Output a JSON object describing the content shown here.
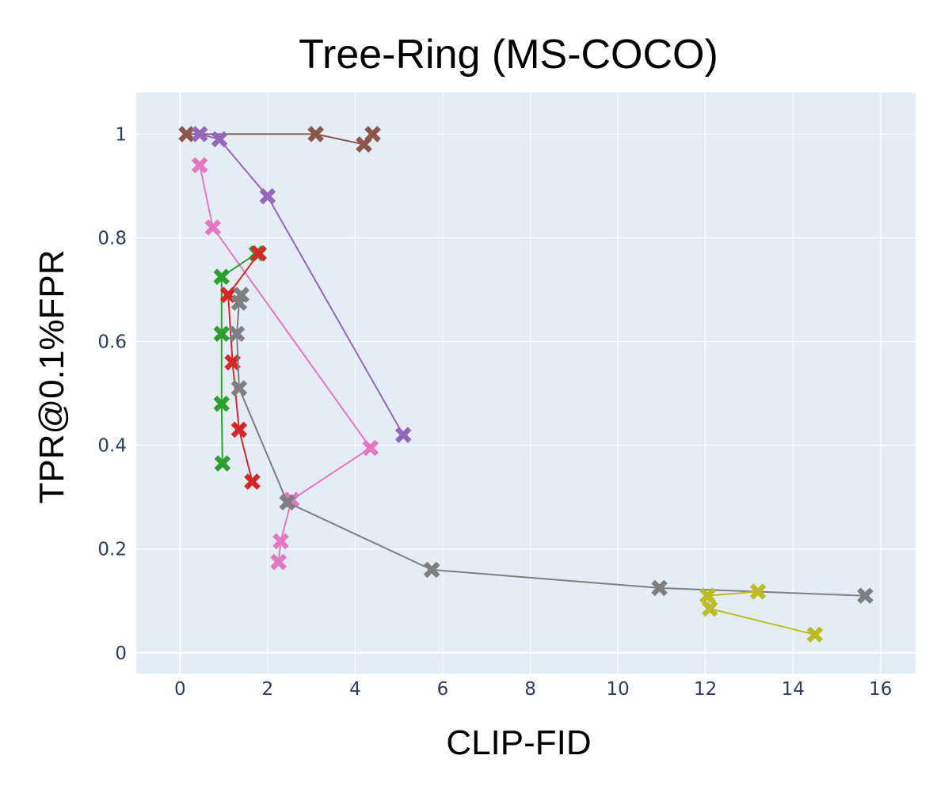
{
  "chart_data": {
    "type": "scatter",
    "title": "Tree-Ring (MS-COCO)",
    "xlabel": "CLIP-FID",
    "ylabel": "TPR@0.1%FPR",
    "xlim": [
      -1.0,
      16.8
    ],
    "ylim": [
      -0.04,
      1.08
    ],
    "x_ticks": [
      "0",
      "2",
      "4",
      "6",
      "8",
      "10",
      "12",
      "14",
      "16"
    ],
    "y_ticks": [
      "0",
      "0.2",
      "0.4",
      "0.6",
      "0.8",
      "1"
    ],
    "grid": true,
    "marker": "x-thick",
    "plot_bgcolor": "#e5ecf6",
    "series": [
      {
        "color": "#8c564b",
        "points": [
          [
            0.15,
            1.0
          ],
          [
            3.1,
            1.0
          ],
          [
            4.2,
            0.98
          ],
          [
            4.4,
            1.0
          ]
        ]
      },
      {
        "color": "#9467bd",
        "points": [
          [
            0.45,
            1.0
          ],
          [
            0.9,
            0.99
          ],
          [
            2.0,
            0.88
          ],
          [
            5.1,
            0.42
          ]
        ]
      },
      {
        "color": "#e377c2",
        "points": [
          [
            0.45,
            0.94
          ],
          [
            0.75,
            0.82
          ],
          [
            4.35,
            0.395
          ],
          [
            2.55,
            0.295
          ],
          [
            2.3,
            0.215
          ],
          [
            2.25,
            0.175
          ]
        ]
      },
      {
        "color": "#2ca02c",
        "points": [
          [
            1.75,
            0.77
          ],
          [
            0.95,
            0.725
          ],
          [
            0.95,
            0.615
          ],
          [
            0.95,
            0.48
          ],
          [
            0.97,
            0.365
          ]
        ]
      },
      {
        "color": "#d62728",
        "points": [
          [
            1.8,
            0.77
          ],
          [
            1.1,
            0.69
          ],
          [
            1.2,
            0.56
          ],
          [
            1.35,
            0.43
          ],
          [
            1.65,
            0.33
          ]
        ]
      },
      {
        "color": "#7f7f7f",
        "points": [
          [
            1.4,
            0.69
          ],
          [
            1.35,
            0.675
          ],
          [
            1.3,
            0.615
          ],
          [
            1.35,
            0.51
          ],
          [
            2.45,
            0.29
          ],
          [
            5.75,
            0.16
          ],
          [
            10.95,
            0.125
          ],
          [
            15.65,
            0.11
          ]
        ]
      },
      {
        "color": "#bcbd22",
        "points": [
          [
            13.2,
            0.118
          ],
          [
            12.05,
            0.11
          ],
          [
            12.1,
            0.085
          ],
          [
            14.5,
            0.035
          ]
        ]
      }
    ]
  }
}
